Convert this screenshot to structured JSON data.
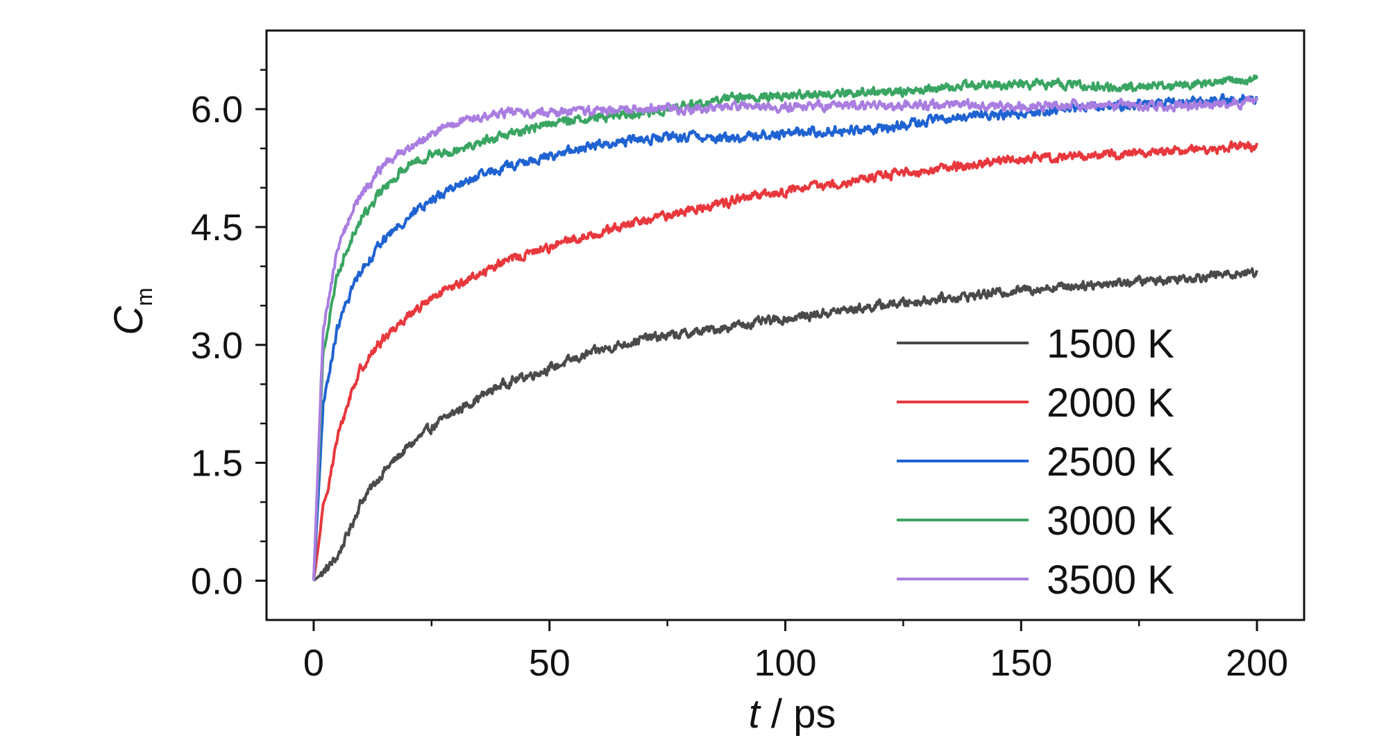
{
  "chart_data": {
    "type": "line",
    "title": "",
    "xlabel": {
      "italic": "t",
      "rest": " / ps"
    },
    "ylabel": {
      "main": "C",
      "sub": "m"
    },
    "xlim": [
      -10,
      210
    ],
    "ylim": [
      -0.5,
      7.0
    ],
    "x_ticks": [
      0,
      50,
      100,
      150,
      200
    ],
    "x_tick_labels": [
      "0",
      "50",
      "100",
      "150",
      "200"
    ],
    "y_ticks": [
      0.0,
      1.5,
      3.0,
      4.5,
      6.0
    ],
    "y_tick_labels": [
      "0.0",
      "1.5",
      "3.0",
      "4.5",
      "6.0"
    ],
    "grid": false,
    "legend_position": "bottom-right",
    "x": [
      0,
      2,
      5,
      8,
      10,
      15,
      20,
      25,
      30,
      40,
      50,
      60,
      70,
      80,
      90,
      100,
      110,
      120,
      130,
      140,
      150,
      160,
      170,
      180,
      190,
      200
    ],
    "series": [
      {
        "name": "1500 K",
        "color": "#4a4a4a",
        "values": [
          0.0,
          0.1,
          0.3,
          0.7,
          1.0,
          1.4,
          1.7,
          1.95,
          2.15,
          2.5,
          2.7,
          2.92,
          3.08,
          3.15,
          3.25,
          3.33,
          3.42,
          3.5,
          3.57,
          3.63,
          3.7,
          3.75,
          3.79,
          3.83,
          3.88,
          3.93
        ]
      },
      {
        "name": "2000 K",
        "color": "#e8383d",
        "values": [
          0.0,
          0.9,
          1.8,
          2.4,
          2.7,
          3.1,
          3.38,
          3.58,
          3.75,
          4.05,
          4.25,
          4.42,
          4.58,
          4.72,
          4.85,
          4.95,
          5.05,
          5.15,
          5.22,
          5.3,
          5.36,
          5.4,
          5.43,
          5.46,
          5.5,
          5.52
        ]
      },
      {
        "name": "2500 K",
        "color": "#1f63d2",
        "values": [
          0.0,
          2.2,
          3.2,
          3.7,
          3.95,
          4.35,
          4.62,
          4.85,
          5.02,
          5.25,
          5.4,
          5.55,
          5.62,
          5.65,
          5.63,
          5.7,
          5.72,
          5.75,
          5.85,
          5.92,
          5.95,
          6.02,
          6.05,
          6.08,
          6.1,
          6.15
        ]
      },
      {
        "name": "3000 K",
        "color": "#3aa563",
        "values": [
          0.0,
          2.9,
          3.9,
          4.35,
          4.6,
          5.0,
          5.3,
          5.42,
          5.5,
          5.65,
          5.82,
          5.9,
          5.95,
          6.05,
          6.15,
          6.18,
          6.2,
          6.22,
          6.25,
          6.3,
          6.32,
          6.3,
          6.28,
          6.3,
          6.32,
          6.38
        ]
      },
      {
        "name": "3500 K",
        "color": "#a97ee0",
        "values": [
          0.0,
          3.2,
          4.2,
          4.7,
          4.9,
          5.3,
          5.5,
          5.7,
          5.82,
          5.95,
          5.96,
          5.98,
          6.02,
          6.0,
          6.03,
          6.02,
          6.05,
          6.03,
          6.05,
          6.05,
          6.03,
          6.05,
          6.05,
          6.03,
          6.05,
          6.08
        ]
      }
    ]
  }
}
